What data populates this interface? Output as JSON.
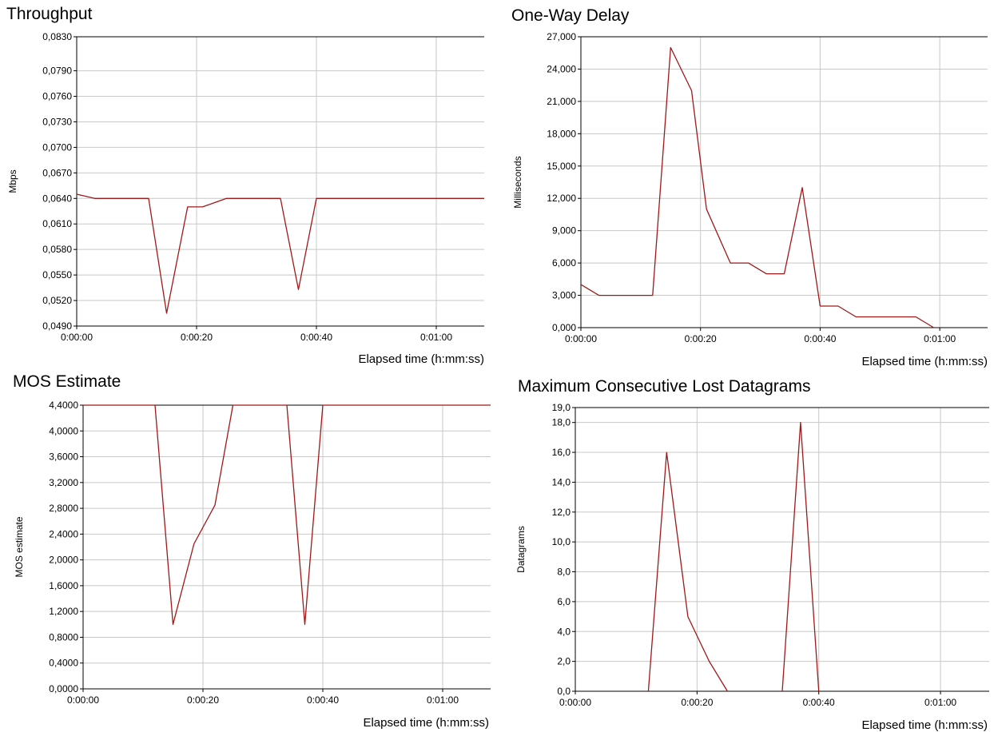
{
  "colors": {
    "line": "#a01818",
    "grid": "#c8c8c8",
    "axis": "#000000",
    "background": "#ffffff"
  },
  "chart_data": [
    {
      "type": "line",
      "title": "Throughput",
      "ylabel": "Mbps",
      "xlabel": "Elapsed time (h:mm:ss)",
      "ylim": [
        0.049,
        0.083
      ],
      "yticks": [
        "0,0830",
        "0,0790",
        "0,0760",
        "0,0730",
        "0,0700",
        "0,0670",
        "0,0640",
        "0,0610",
        "0,0580",
        "0,0550",
        "0,0520",
        "0,0490"
      ],
      "ytick_values": [
        0.083,
        0.079,
        0.076,
        0.073,
        0.07,
        0.067,
        0.064,
        0.061,
        0.058,
        0.055,
        0.052,
        0.049
      ],
      "xlim": [
        0,
        68
      ],
      "xticks": [
        "0:00:00",
        "0:00:20",
        "0:00:40",
        "0:01:00"
      ],
      "xtick_values": [
        0,
        20,
        40,
        60
      ],
      "series": [
        {
          "x": [
            0,
            3,
            12,
            15,
            18.5,
            21,
            25,
            34,
            37,
            40,
            68
          ],
          "y": [
            0.0645,
            0.064,
            0.064,
            0.0505,
            0.063,
            0.063,
            0.064,
            0.064,
            0.0533,
            0.064,
            0.064
          ]
        }
      ]
    },
    {
      "type": "line",
      "title": "One-Way Delay",
      "ylabel": "Milliseconds",
      "xlabel": "Elapsed time (h:mm:ss)",
      "ylim": [
        0,
        27000
      ],
      "yticks": [
        "27,000",
        "24,000",
        "21,000",
        "18,000",
        "15,000",
        "12,000",
        "9,000",
        "6,000",
        "3,000",
        "0,000"
      ],
      "ytick_values": [
        27000,
        24000,
        21000,
        18000,
        15000,
        12000,
        9000,
        6000,
        3000,
        0
      ],
      "xlim": [
        0,
        68
      ],
      "xticks": [
        "0:00:00",
        "0:00:20",
        "0:00:40",
        "0:01:00"
      ],
      "xtick_values": [
        0,
        20,
        40,
        60
      ],
      "series": [
        {
          "x": [
            0,
            3,
            12,
            15,
            18.5,
            21,
            25,
            28,
            31,
            34,
            37,
            40,
            43,
            46,
            56,
            59
          ],
          "y": [
            4000,
            3000,
            3000,
            26000,
            22000,
            11000,
            6000,
            6000,
            5000,
            5000,
            13000,
            2000,
            2000,
            1000,
            1000,
            0
          ]
        }
      ]
    },
    {
      "type": "line",
      "title": "MOS Estimate",
      "ylabel": "MOS estimate",
      "xlabel": "Elapsed time (h:mm:ss)",
      "ylim": [
        0,
        4.4
      ],
      "yticks": [
        "4,4000",
        "4,0000",
        "3,6000",
        "3,2000",
        "2,8000",
        "2,4000",
        "2,0000",
        "1,6000",
        "1,2000",
        "0,8000",
        "0,4000",
        "0,0000"
      ],
      "ytick_values": [
        4.4,
        4.0,
        3.6,
        3.2,
        2.8,
        2.4,
        2.0,
        1.6,
        1.2,
        0.8,
        0.4,
        0.0
      ],
      "xlim": [
        0,
        68
      ],
      "xticks": [
        "0:00:00",
        "0:00:20",
        "0:00:40",
        "0:01:00"
      ],
      "xtick_values": [
        0,
        20,
        40,
        60
      ],
      "series": [
        {
          "x": [
            0,
            12,
            15,
            18.5,
            22,
            25,
            34,
            37,
            40,
            68
          ],
          "y": [
            4.4,
            4.4,
            1.0,
            2.25,
            2.85,
            4.4,
            4.4,
            1.0,
            4.4,
            4.4
          ]
        }
      ]
    },
    {
      "type": "line",
      "title": "Maximum Consecutive Lost Datagrams",
      "ylabel": "Datagrams",
      "xlabel": "Elapsed time (h:mm:ss)",
      "ylim": [
        0,
        19
      ],
      "yticks": [
        "19,0",
        "18,0",
        "16,0",
        "14,0",
        "12,0",
        "10,0",
        "8,0",
        "6,0",
        "4,0",
        "2,0",
        "0,0"
      ],
      "ytick_values": [
        19,
        18,
        16,
        14,
        12,
        10,
        8,
        6,
        4,
        2,
        0
      ],
      "xlim": [
        0,
        68
      ],
      "xticks": [
        "0:00:00",
        "0:00:20",
        "0:00:40",
        "0:01:00"
      ],
      "xtick_values": [
        0,
        20,
        40,
        60
      ],
      "series": [
        {
          "x": [
            12,
            15,
            18.5,
            22,
            25
          ],
          "y": [
            0,
            16,
            5,
            2,
            0
          ]
        },
        {
          "x": [
            34,
            37,
            40
          ],
          "y": [
            0,
            18,
            0
          ]
        }
      ]
    }
  ]
}
